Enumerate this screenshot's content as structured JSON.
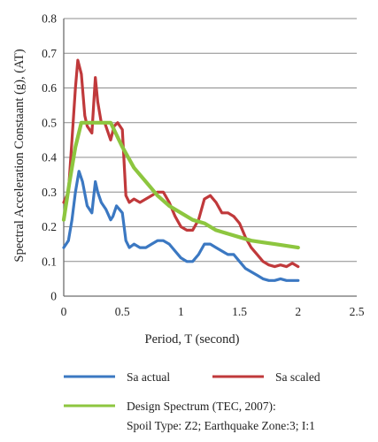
{
  "chart_data": {
    "type": "line",
    "xlabel": "Period, T (second)",
    "ylabel": "Spectral Acceleration Constaant (g), (AT)",
    "xlim": [
      0,
      2.5
    ],
    "ylim": [
      0,
      0.8
    ],
    "xticks": [
      "0",
      "0.5",
      "1",
      "1.5",
      "2",
      "2.5"
    ],
    "yticks": [
      "0",
      "0.1",
      "0.2",
      "0.3",
      "0.4",
      "0.5",
      "0.6",
      "0.7",
      "0.8"
    ],
    "grid": "horizontal",
    "legend_position": "bottom",
    "series": [
      {
        "name": "Sa actual",
        "color": "#3b78c2",
        "x": [
          0,
          0.04,
          0.07,
          0.1,
          0.13,
          0.16,
          0.2,
          0.24,
          0.27,
          0.29,
          0.32,
          0.36,
          0.4,
          0.42,
          0.45,
          0.5,
          0.53,
          0.56,
          0.6,
          0.65,
          0.7,
          0.75,
          0.8,
          0.85,
          0.9,
          0.95,
          1.0,
          1.05,
          1.1,
          1.15,
          1.2,
          1.25,
          1.3,
          1.35,
          1.4,
          1.45,
          1.5,
          1.55,
          1.6,
          1.65,
          1.7,
          1.75,
          1.8,
          1.85,
          1.9,
          1.95,
          2.0
        ],
        "y": [
          0.14,
          0.16,
          0.22,
          0.3,
          0.36,
          0.33,
          0.26,
          0.24,
          0.33,
          0.3,
          0.27,
          0.25,
          0.22,
          0.23,
          0.26,
          0.24,
          0.16,
          0.14,
          0.15,
          0.14,
          0.14,
          0.15,
          0.16,
          0.16,
          0.15,
          0.13,
          0.11,
          0.1,
          0.1,
          0.12,
          0.15,
          0.15,
          0.14,
          0.13,
          0.12,
          0.12,
          0.1,
          0.08,
          0.07,
          0.06,
          0.05,
          0.045,
          0.045,
          0.05,
          0.045,
          0.045,
          0.045
        ]
      },
      {
        "name": "Sa scaled",
        "color": "#c0393b",
        "x": [
          0,
          0.04,
          0.07,
          0.1,
          0.12,
          0.15,
          0.18,
          0.2,
          0.24,
          0.27,
          0.29,
          0.32,
          0.35,
          0.4,
          0.43,
          0.46,
          0.5,
          0.53,
          0.56,
          0.6,
          0.65,
          0.7,
          0.75,
          0.8,
          0.85,
          0.9,
          0.95,
          1.0,
          1.05,
          1.1,
          1.15,
          1.2,
          1.25,
          1.3,
          1.35,
          1.4,
          1.45,
          1.5,
          1.55,
          1.6,
          1.65,
          1.7,
          1.75,
          1.8,
          1.85,
          1.9,
          1.95,
          2.0
        ],
        "y": [
          0.27,
          0.3,
          0.45,
          0.6,
          0.68,
          0.64,
          0.52,
          0.49,
          0.47,
          0.63,
          0.56,
          0.5,
          0.5,
          0.45,
          0.49,
          0.5,
          0.48,
          0.29,
          0.27,
          0.28,
          0.27,
          0.28,
          0.29,
          0.3,
          0.3,
          0.27,
          0.23,
          0.2,
          0.19,
          0.19,
          0.22,
          0.28,
          0.29,
          0.27,
          0.24,
          0.24,
          0.23,
          0.21,
          0.17,
          0.14,
          0.12,
          0.1,
          0.09,
          0.085,
          0.09,
          0.085,
          0.095,
          0.085
        ]
      },
      {
        "name": "Design Spectrum (TEC, 2007):",
        "name_line2": "Spoil Type: Z2; Earthquake Zone:3; I:1",
        "color": "#8dc63f",
        "x": [
          0,
          0.05,
          0.1,
          0.15,
          0.2,
          0.3,
          0.4,
          0.5,
          0.6,
          0.7,
          0.8,
          0.9,
          1.0,
          1.1,
          1.2,
          1.3,
          1.4,
          1.5,
          1.6,
          1.7,
          1.8,
          1.9,
          2.0
        ],
        "y": [
          0.22,
          0.33,
          0.43,
          0.5,
          0.5,
          0.5,
          0.5,
          0.43,
          0.37,
          0.33,
          0.29,
          0.26,
          0.24,
          0.22,
          0.21,
          0.19,
          0.18,
          0.17,
          0.16,
          0.155,
          0.15,
          0.145,
          0.14
        ]
      }
    ]
  }
}
